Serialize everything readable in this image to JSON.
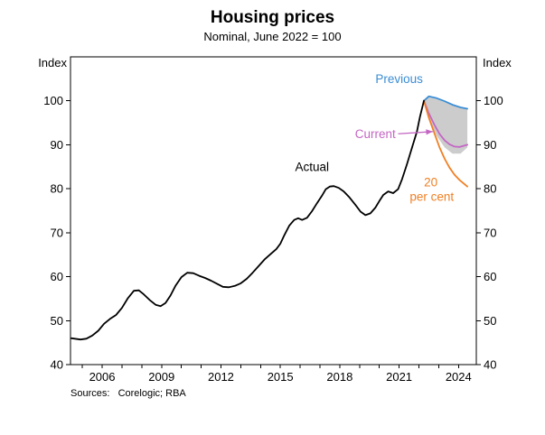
{
  "title": "Housing prices",
  "subtitle": "Nominal, June 2022 = 100",
  "left_axis_unit": "Index",
  "right_axis_unit": "Index",
  "source_note": "Sources:   Corelogic; RBA",
  "chart_data": {
    "type": "line",
    "title": "Housing prices",
    "subtitle": "Nominal, June 2022 = 100",
    "xlabel": "",
    "ylabel": "Index",
    "xlim": [
      2004.4,
      2024.9
    ],
    "ylim": [
      40,
      110
    ],
    "yticks": [
      40,
      50,
      60,
      70,
      80,
      90,
      100
    ],
    "xticks": [
      2006,
      2009,
      2012,
      2015,
      2018,
      2021,
      2024
    ],
    "minor_xticks_every": 1,
    "grid": false,
    "legend_position": "inline-annotations",
    "band": {
      "name": "forecast-range",
      "color": "#cccccc",
      "x": [
        2022.25,
        2022.5,
        2022.9,
        2023.3,
        2023.7,
        2024.1,
        2024.45
      ],
      "upper": [
        100,
        100.8,
        100.4,
        99.7,
        99.0,
        98.4,
        98.1
      ],
      "lower": [
        100,
        96.0,
        92.0,
        89.4,
        88.0,
        88.0,
        89.4
      ]
    },
    "series": [
      {
        "name": "Previous",
        "color": "#3a8dd4",
        "x": [
          2022.25,
          2022.5,
          2022.9,
          2023.3,
          2023.7,
          2024.1,
          2024.45
        ],
        "y": [
          100,
          101.0,
          100.6,
          99.9,
          99.1,
          98.5,
          98.2
        ]
      },
      {
        "name": "Current",
        "color": "#c466c4",
        "x": [
          2022.25,
          2022.5,
          2022.8,
          2023.05,
          2023.3,
          2023.55,
          2023.8,
          2024.05,
          2024.45
        ],
        "y": [
          100,
          97.2,
          94.4,
          92.4,
          91.0,
          90.1,
          89.6,
          89.5,
          90.0
        ]
      },
      {
        "name": "20 per cent",
        "color": "#f07f23",
        "x": [
          2022.25,
          2022.5,
          2022.8,
          2023.05,
          2023.3,
          2023.55,
          2023.8,
          2024.05,
          2024.45
        ],
        "y": [
          100,
          96.2,
          92.4,
          89.3,
          86.8,
          84.8,
          83.2,
          82.0,
          80.5
        ]
      },
      {
        "name": "Actual",
        "color": "#000000",
        "x": [
          2004.45,
          2004.9,
          2005.2,
          2005.5,
          2005.8,
          2006.1,
          2006.4,
          2006.7,
          2007.0,
          2007.3,
          2007.6,
          2007.85,
          2008.1,
          2008.4,
          2008.7,
          2008.95,
          2009.2,
          2009.45,
          2009.7,
          2010.0,
          2010.3,
          2010.6,
          2010.9,
          2011.2,
          2011.5,
          2011.8,
          2012.1,
          2012.4,
          2012.7,
          2013.0,
          2013.3,
          2013.6,
          2013.9,
          2014.2,
          2014.5,
          2014.8,
          2015.0,
          2015.2,
          2015.45,
          2015.7,
          2015.9,
          2016.1,
          2016.35,
          2016.6,
          2016.85,
          2017.1,
          2017.3,
          2017.5,
          2017.7,
          2017.95,
          2018.2,
          2018.5,
          2018.8,
          2019.05,
          2019.3,
          2019.55,
          2019.8,
          2020.0,
          2020.2,
          2020.45,
          2020.7,
          2020.95,
          2021.15,
          2021.4,
          2021.65,
          2021.9,
          2022.05,
          2022.25
        ],
        "y": [
          46.0,
          45.7,
          45.9,
          46.6,
          47.7,
          49.3,
          50.4,
          51.3,
          52.9,
          55.1,
          56.8,
          56.9,
          56.0,
          54.7,
          53.6,
          53.3,
          54.0,
          55.7,
          57.9,
          59.9,
          60.9,
          60.8,
          60.2,
          59.7,
          59.1,
          58.4,
          57.7,
          57.6,
          57.9,
          58.5,
          59.5,
          60.9,
          62.4,
          63.9,
          65.1,
          66.3,
          67.5,
          69.4,
          71.6,
          72.9,
          73.3,
          72.9,
          73.4,
          74.9,
          76.7,
          78.4,
          79.9,
          80.5,
          80.6,
          80.2,
          79.4,
          78.0,
          76.3,
          74.8,
          74.0,
          74.4,
          75.7,
          77.2,
          78.6,
          79.4,
          79.0,
          79.9,
          82.2,
          85.6,
          89.3,
          93.0,
          96.3,
          100.0
        ]
      }
    ],
    "annotations": [
      {
        "text": "Previous",
        "x": 2021.0,
        "y": 105.0,
        "color": "#3a8dd4"
      },
      {
        "text": "Current",
        "x": 2019.8,
        "y": 92.5,
        "color": "#c466c4",
        "arrow": {
          "x1": 2020.95,
          "y1": 92.5,
          "x2": 2022.7,
          "y2": 93.0
        }
      },
      {
        "text": "Actual",
        "x": 2016.6,
        "y": 85.0,
        "color": "#000000"
      },
      {
        "text": "20",
        "x": 2022.6,
        "y": 81.5,
        "color": "#f07f23"
      },
      {
        "text": "per cent",
        "x": 2022.65,
        "y": 78.2,
        "color": "#f07f23"
      }
    ]
  }
}
